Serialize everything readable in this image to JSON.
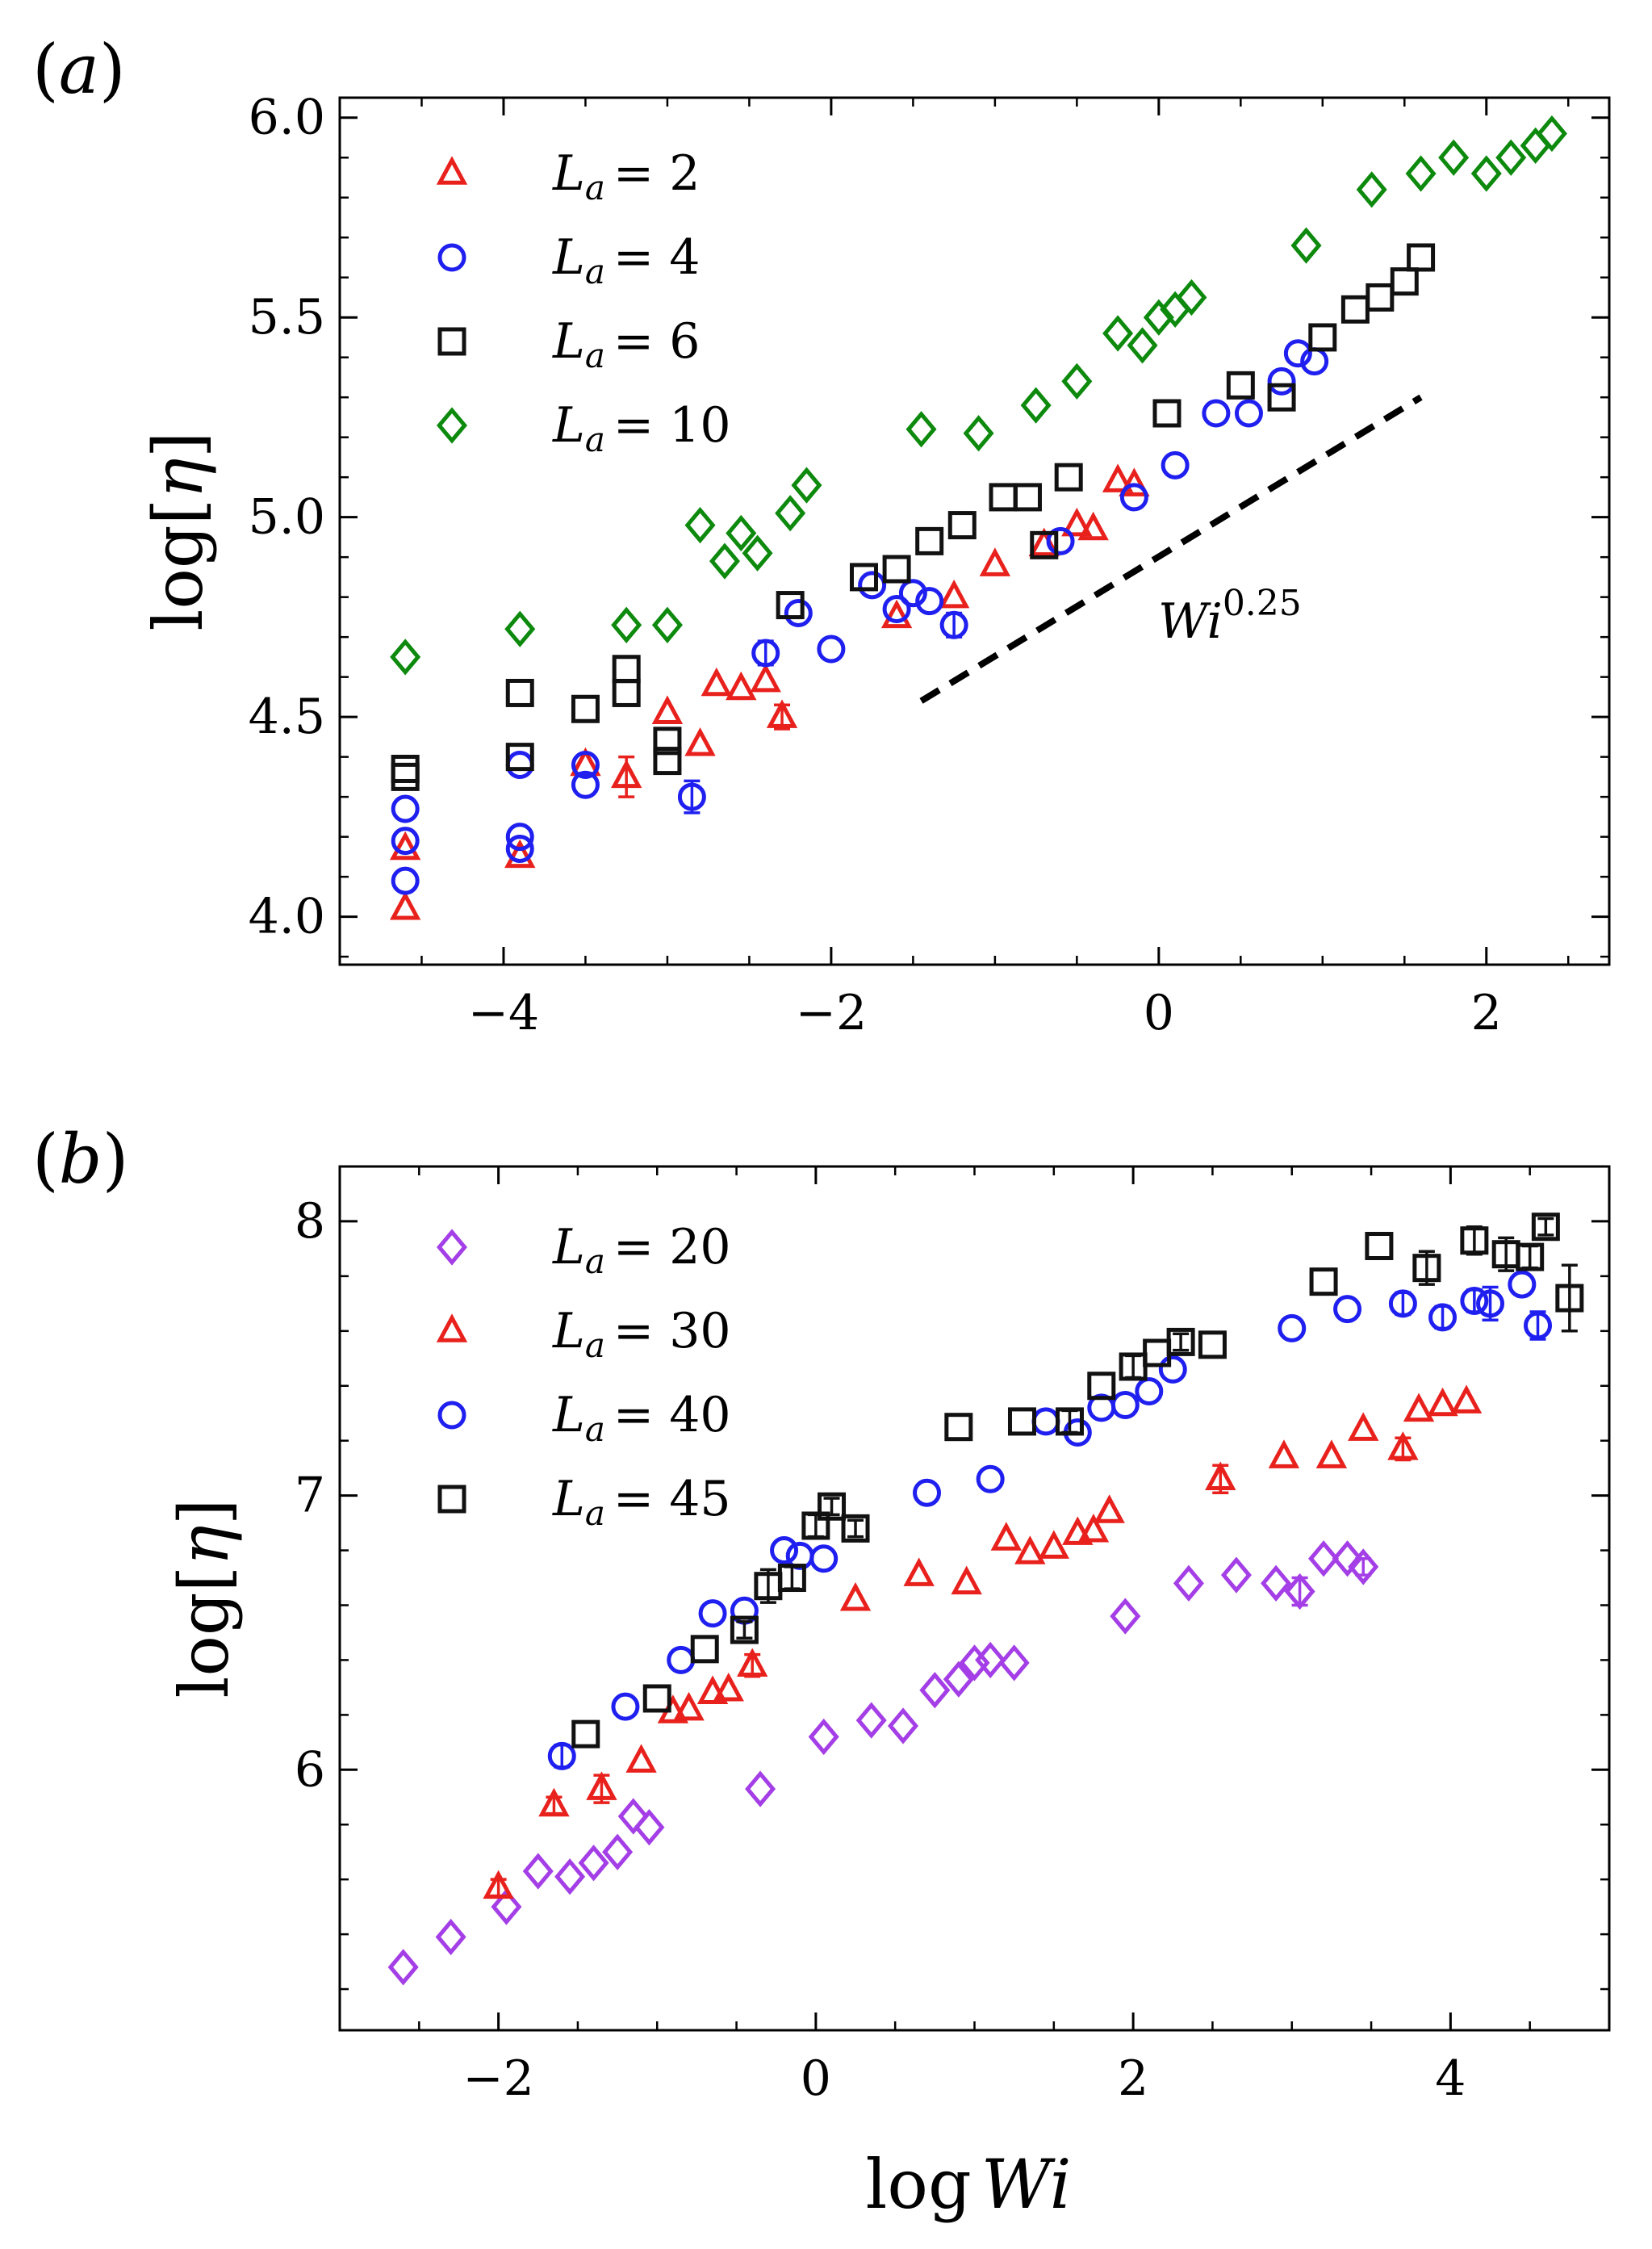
{
  "figure": {
    "xlabel": "log Wi",
    "ylabel": "log[η]"
  },
  "chart_data": [
    {
      "panel_label": "(a)",
      "type": "scatter",
      "xlim": [
        -5.0,
        2.75
      ],
      "ylim": [
        3.88,
        6.05
      ],
      "xticks": [
        -4,
        -2,
        0,
        2
      ],
      "xtick_labels": [
        "−4",
        "−2",
        "0",
        "2"
      ],
      "yticks": [
        4.0,
        4.5,
        5.0,
        5.5,
        6.0
      ],
      "ytick_labels": [
        "4.0",
        "4.5",
        "5.0",
        "5.5",
        "6.0"
      ],
      "xlabel": "",
      "ylabel": "log[η]",
      "legend_position": "upper-left",
      "series": [
        {
          "name": "La = 2",
          "legend_sub": "a",
          "legend_value": "2",
          "marker": "triangle",
          "color": "#e8211d",
          "points": [
            [
              -4.6,
              4.02
            ],
            [
              -4.6,
              4.17
            ],
            [
              -3.9,
              4.15
            ],
            [
              -3.5,
              4.38
            ],
            [
              -3.25,
              4.35
            ],
            [
              -3.0,
              4.51
            ],
            [
              -2.8,
              4.43
            ],
            [
              -2.7,
              4.58
            ],
            [
              -2.55,
              4.57
            ],
            [
              -2.4,
              4.59
            ],
            [
              -2.3,
              4.5
            ],
            [
              -1.6,
              4.75
            ],
            [
              -1.25,
              4.8
            ],
            [
              -1.0,
              4.88
            ],
            [
              -0.7,
              4.93
            ],
            [
              -0.5,
              4.98
            ],
            [
              -0.4,
              4.97
            ],
            [
              -0.25,
              5.09
            ],
            [
              -0.15,
              5.08
            ]
          ],
          "errors": [
            0,
            0,
            0,
            0,
            0.05,
            0,
            0,
            0,
            0,
            0,
            0.03,
            0,
            0,
            0,
            0,
            0,
            0,
            0,
            0
          ]
        },
        {
          "name": "La = 4",
          "legend_sub": "a",
          "legend_value": "4",
          "marker": "circle",
          "color": "#1f1ff0",
          "points": [
            [
              -4.6,
              4.09
            ],
            [
              -4.6,
              4.19
            ],
            [
              -4.6,
              4.27
            ],
            [
              -3.9,
              4.17
            ],
            [
              -3.9,
              4.2
            ],
            [
              -3.9,
              4.38
            ],
            [
              -3.5,
              4.33
            ],
            [
              -3.5,
              4.38
            ],
            [
              -2.85,
              4.3
            ],
            [
              -2.4,
              4.66
            ],
            [
              -2.2,
              4.76
            ],
            [
              -2.0,
              4.67
            ],
            [
              -1.75,
              4.83
            ],
            [
              -1.6,
              4.77
            ],
            [
              -1.5,
              4.81
            ],
            [
              -1.4,
              4.79
            ],
            [
              -1.25,
              4.73
            ],
            [
              -0.6,
              4.94
            ],
            [
              -0.15,
              5.05
            ],
            [
              0.1,
              5.13
            ],
            [
              0.35,
              5.26
            ],
            [
              0.55,
              5.26
            ],
            [
              0.75,
              5.34
            ],
            [
              0.85,
              5.41
            ],
            [
              0.95,
              5.39
            ]
          ],
          "errors": [
            0,
            0,
            0,
            0,
            0,
            0,
            0,
            0,
            0.04,
            0.03,
            0,
            0,
            0,
            0,
            0,
            0,
            0.03,
            0,
            0,
            0,
            0,
            0,
            0,
            0,
            0
          ]
        },
        {
          "name": "La = 6",
          "legend_sub": "a",
          "legend_value": "6",
          "marker": "square",
          "color": "#111111",
          "points": [
            [
              -4.6,
              4.35
            ],
            [
              -4.6,
              4.37
            ],
            [
              -3.9,
              4.4
            ],
            [
              -3.9,
              4.56
            ],
            [
              -3.5,
              4.52
            ],
            [
              -3.25,
              4.56
            ],
            [
              -3.25,
              4.62
            ],
            [
              -3.0,
              4.39
            ],
            [
              -3.0,
              4.44
            ],
            [
              -2.25,
              4.78
            ],
            [
              -1.8,
              4.85
            ],
            [
              -1.6,
              4.87
            ],
            [
              -1.4,
              4.94
            ],
            [
              -1.2,
              4.98
            ],
            [
              -0.95,
              5.05
            ],
            [
              -0.8,
              5.05
            ],
            [
              -0.7,
              4.93
            ],
            [
              -0.55,
              5.1
            ],
            [
              0.05,
              5.26
            ],
            [
              0.5,
              5.33
            ],
            [
              0.75,
              5.3
            ],
            [
              1.0,
              5.45
            ],
            [
              1.2,
              5.52
            ],
            [
              1.35,
              5.55
            ],
            [
              1.5,
              5.59
            ],
            [
              1.6,
              5.65
            ]
          ],
          "errors": [
            0,
            0,
            0,
            0,
            0,
            0,
            0,
            0,
            0,
            0,
            0,
            0,
            0,
            0,
            0,
            0,
            0,
            0,
            0,
            0,
            0,
            0,
            0,
            0,
            0,
            0
          ]
        },
        {
          "name": "La = 10",
          "legend_sub": "a",
          "legend_value": "10",
          "marker": "diamond",
          "color": "#0d8a0d",
          "points": [
            [
              -4.6,
              4.65
            ],
            [
              -3.9,
              4.72
            ],
            [
              -3.25,
              4.73
            ],
            [
              -3.0,
              4.73
            ],
            [
              -2.8,
              4.98
            ],
            [
              -2.65,
              4.89
            ],
            [
              -2.55,
              4.96
            ],
            [
              -2.45,
              4.91
            ],
            [
              -2.25,
              5.01
            ],
            [
              -2.15,
              5.08
            ],
            [
              -1.45,
              5.22
            ],
            [
              -1.1,
              5.21
            ],
            [
              -0.75,
              5.28
            ],
            [
              -0.5,
              5.34
            ],
            [
              -0.25,
              5.46
            ],
            [
              -0.1,
              5.43
            ],
            [
              0.0,
              5.5
            ],
            [
              0.1,
              5.52
            ],
            [
              0.2,
              5.55
            ],
            [
              0.9,
              5.68
            ],
            [
              1.3,
              5.82
            ],
            [
              1.6,
              5.86
            ],
            [
              1.8,
              5.9
            ],
            [
              2.0,
              5.86
            ],
            [
              2.15,
              5.9
            ],
            [
              2.3,
              5.93
            ],
            [
              2.4,
              5.96
            ]
          ],
          "errors": [
            0,
            0,
            0,
            0,
            0,
            0,
            0,
            0,
            0,
            0,
            0,
            0,
            0,
            0,
            0,
            0,
            0,
            0,
            0,
            0,
            0,
            0,
            0,
            0,
            0,
            0,
            0
          ]
        }
      ],
      "reference_line": {
        "label_base": "Wi",
        "label_exponent": "0.25",
        "x": [
          -1.45,
          1.6
        ],
        "y": [
          4.54,
          5.3
        ]
      }
    },
    {
      "panel_label": "(b)",
      "type": "scatter",
      "xlim": [
        -3.0,
        5.0
      ],
      "ylim": [
        5.05,
        8.2
      ],
      "xticks": [
        -2,
        0,
        2,
        4
      ],
      "xtick_labels": [
        "−2",
        "0",
        "2",
        "4"
      ],
      "yticks": [
        6,
        7,
        8
      ],
      "ytick_labels": [
        "6",
        "7",
        "8"
      ],
      "xlabel": "log Wi",
      "ylabel": "log[η]",
      "legend_position": "upper-left",
      "series": [
        {
          "name": "La = 20",
          "legend_sub": "a",
          "legend_value": "20",
          "marker": "diamond",
          "color": "#a43ee6",
          "points": [
            [
              -2.6,
              5.28
            ],
            [
              -2.3,
              5.39
            ],
            [
              -1.95,
              5.5
            ],
            [
              -1.75,
              5.63
            ],
            [
              -1.55,
              5.61
            ],
            [
              -1.4,
              5.66
            ],
            [
              -1.25,
              5.7
            ],
            [
              -1.15,
              5.83
            ],
            [
              -1.05,
              5.79
            ],
            [
              -0.35,
              5.93
            ],
            [
              0.05,
              6.12
            ],
            [
              0.35,
              6.18
            ],
            [
              0.55,
              6.16
            ],
            [
              0.75,
              6.29
            ],
            [
              0.9,
              6.33
            ],
            [
              1.0,
              6.39
            ],
            [
              1.1,
              6.4
            ],
            [
              1.25,
              6.39
            ],
            [
              1.95,
              6.56
            ],
            [
              2.35,
              6.68
            ],
            [
              2.65,
              6.71
            ],
            [
              2.9,
              6.68
            ],
            [
              3.05,
              6.65
            ],
            [
              3.2,
              6.77
            ],
            [
              3.35,
              6.77
            ],
            [
              3.45,
              6.74
            ]
          ],
          "errors": [
            0,
            0,
            0,
            0,
            0,
            0,
            0,
            0,
            0,
            0,
            0,
            0,
            0,
            0,
            0,
            0,
            0,
            0,
            0,
            0,
            0,
            0,
            0.05,
            0,
            0,
            0.03
          ]
        },
        {
          "name": "La = 30",
          "legend_sub": "a",
          "legend_value": "30",
          "marker": "triangle",
          "color": "#e8211d",
          "points": [
            [
              -2.0,
              5.57
            ],
            [
              -1.65,
              5.87
            ],
            [
              -1.35,
              5.93
            ],
            [
              -1.1,
              6.03
            ],
            [
              -0.9,
              6.21
            ],
            [
              -0.8,
              6.22
            ],
            [
              -0.65,
              6.28
            ],
            [
              -0.55,
              6.29
            ],
            [
              -0.4,
              6.38
            ],
            [
              0.25,
              6.62
            ],
            [
              0.65,
              6.71
            ],
            [
              0.95,
              6.68
            ],
            [
              1.2,
              6.84
            ],
            [
              1.35,
              6.79
            ],
            [
              1.5,
              6.81
            ],
            [
              1.65,
              6.86
            ],
            [
              1.75,
              6.87
            ],
            [
              1.85,
              6.94
            ],
            [
              2.55,
              7.06
            ],
            [
              2.95,
              7.14
            ],
            [
              3.25,
              7.14
            ],
            [
              3.45,
              7.24
            ],
            [
              3.7,
              7.17
            ],
            [
              3.8,
              7.31
            ],
            [
              3.95,
              7.33
            ],
            [
              4.1,
              7.34
            ]
          ],
          "errors": [
            0.03,
            0.03,
            0.05,
            0,
            0,
            0,
            0,
            0,
            0.04,
            0,
            0,
            0,
            0,
            0,
            0,
            0,
            0,
            0,
            0.05,
            0,
            0,
            0,
            0.04,
            0,
            0,
            0
          ]
        },
        {
          "name": "La = 40",
          "legend_sub": "a",
          "legend_value": "40",
          "marker": "circle",
          "color": "#1f1ff0",
          "points": [
            [
              -1.6,
              6.05
            ],
            [
              -1.2,
              6.23
            ],
            [
              -0.85,
              6.4
            ],
            [
              -0.65,
              6.57
            ],
            [
              -0.45,
              6.58
            ],
            [
              -0.2,
              6.8
            ],
            [
              -0.1,
              6.78
            ],
            [
              0.05,
              6.77
            ],
            [
              0.7,
              7.01
            ],
            [
              1.1,
              7.06
            ],
            [
              1.45,
              7.27
            ],
            [
              1.65,
              7.23
            ],
            [
              1.8,
              7.32
            ],
            [
              1.95,
              7.33
            ],
            [
              2.1,
              7.38
            ],
            [
              2.25,
              7.46
            ],
            [
              3.0,
              7.61
            ],
            [
              3.35,
              7.68
            ],
            [
              3.7,
              7.7
            ],
            [
              3.95,
              7.65
            ],
            [
              4.15,
              7.71
            ],
            [
              4.25,
              7.7
            ],
            [
              4.45,
              7.77
            ],
            [
              4.55,
              7.62
            ]
          ],
          "errors": [
            0.04,
            0,
            0,
            0,
            0,
            0,
            0,
            0,
            0,
            0,
            0,
            0,
            0,
            0,
            0,
            0,
            0,
            0,
            0.04,
            0.04,
            0.04,
            0.06,
            0,
            0.05
          ]
        },
        {
          "name": "La = 45",
          "legend_sub": "a",
          "legend_value": "45",
          "marker": "square",
          "color": "#111111",
          "points": [
            [
              -1.45,
              6.13
            ],
            [
              -1.0,
              6.26
            ],
            [
              -0.7,
              6.44
            ],
            [
              -0.45,
              6.51
            ],
            [
              -0.3,
              6.67
            ],
            [
              -0.15,
              6.7
            ],
            [
              0.0,
              6.89
            ],
            [
              0.1,
              6.96
            ],
            [
              0.25,
              6.88
            ],
            [
              0.9,
              7.25
            ],
            [
              1.3,
              7.27
            ],
            [
              1.6,
              7.27
            ],
            [
              1.8,
              7.4
            ],
            [
              2.0,
              7.47
            ],
            [
              2.15,
              7.52
            ],
            [
              2.3,
              7.56
            ],
            [
              2.5,
              7.55
            ],
            [
              3.2,
              7.78
            ],
            [
              3.55,
              7.91
            ],
            [
              3.85,
              7.83
            ],
            [
              4.15,
              7.93
            ],
            [
              4.35,
              7.88
            ],
            [
              4.5,
              7.87
            ],
            [
              4.6,
              7.98
            ],
            [
              4.75,
              7.72
            ]
          ],
          "errors": [
            0,
            0,
            0,
            0.03,
            0.06,
            0.04,
            0.04,
            0.03,
            0.03,
            0,
            0,
            0.04,
            0,
            0.04,
            0,
            0.03,
            0,
            0,
            0,
            0.06,
            0.05,
            0.06,
            0.04,
            0.03,
            0.12
          ]
        }
      ]
    }
  ]
}
